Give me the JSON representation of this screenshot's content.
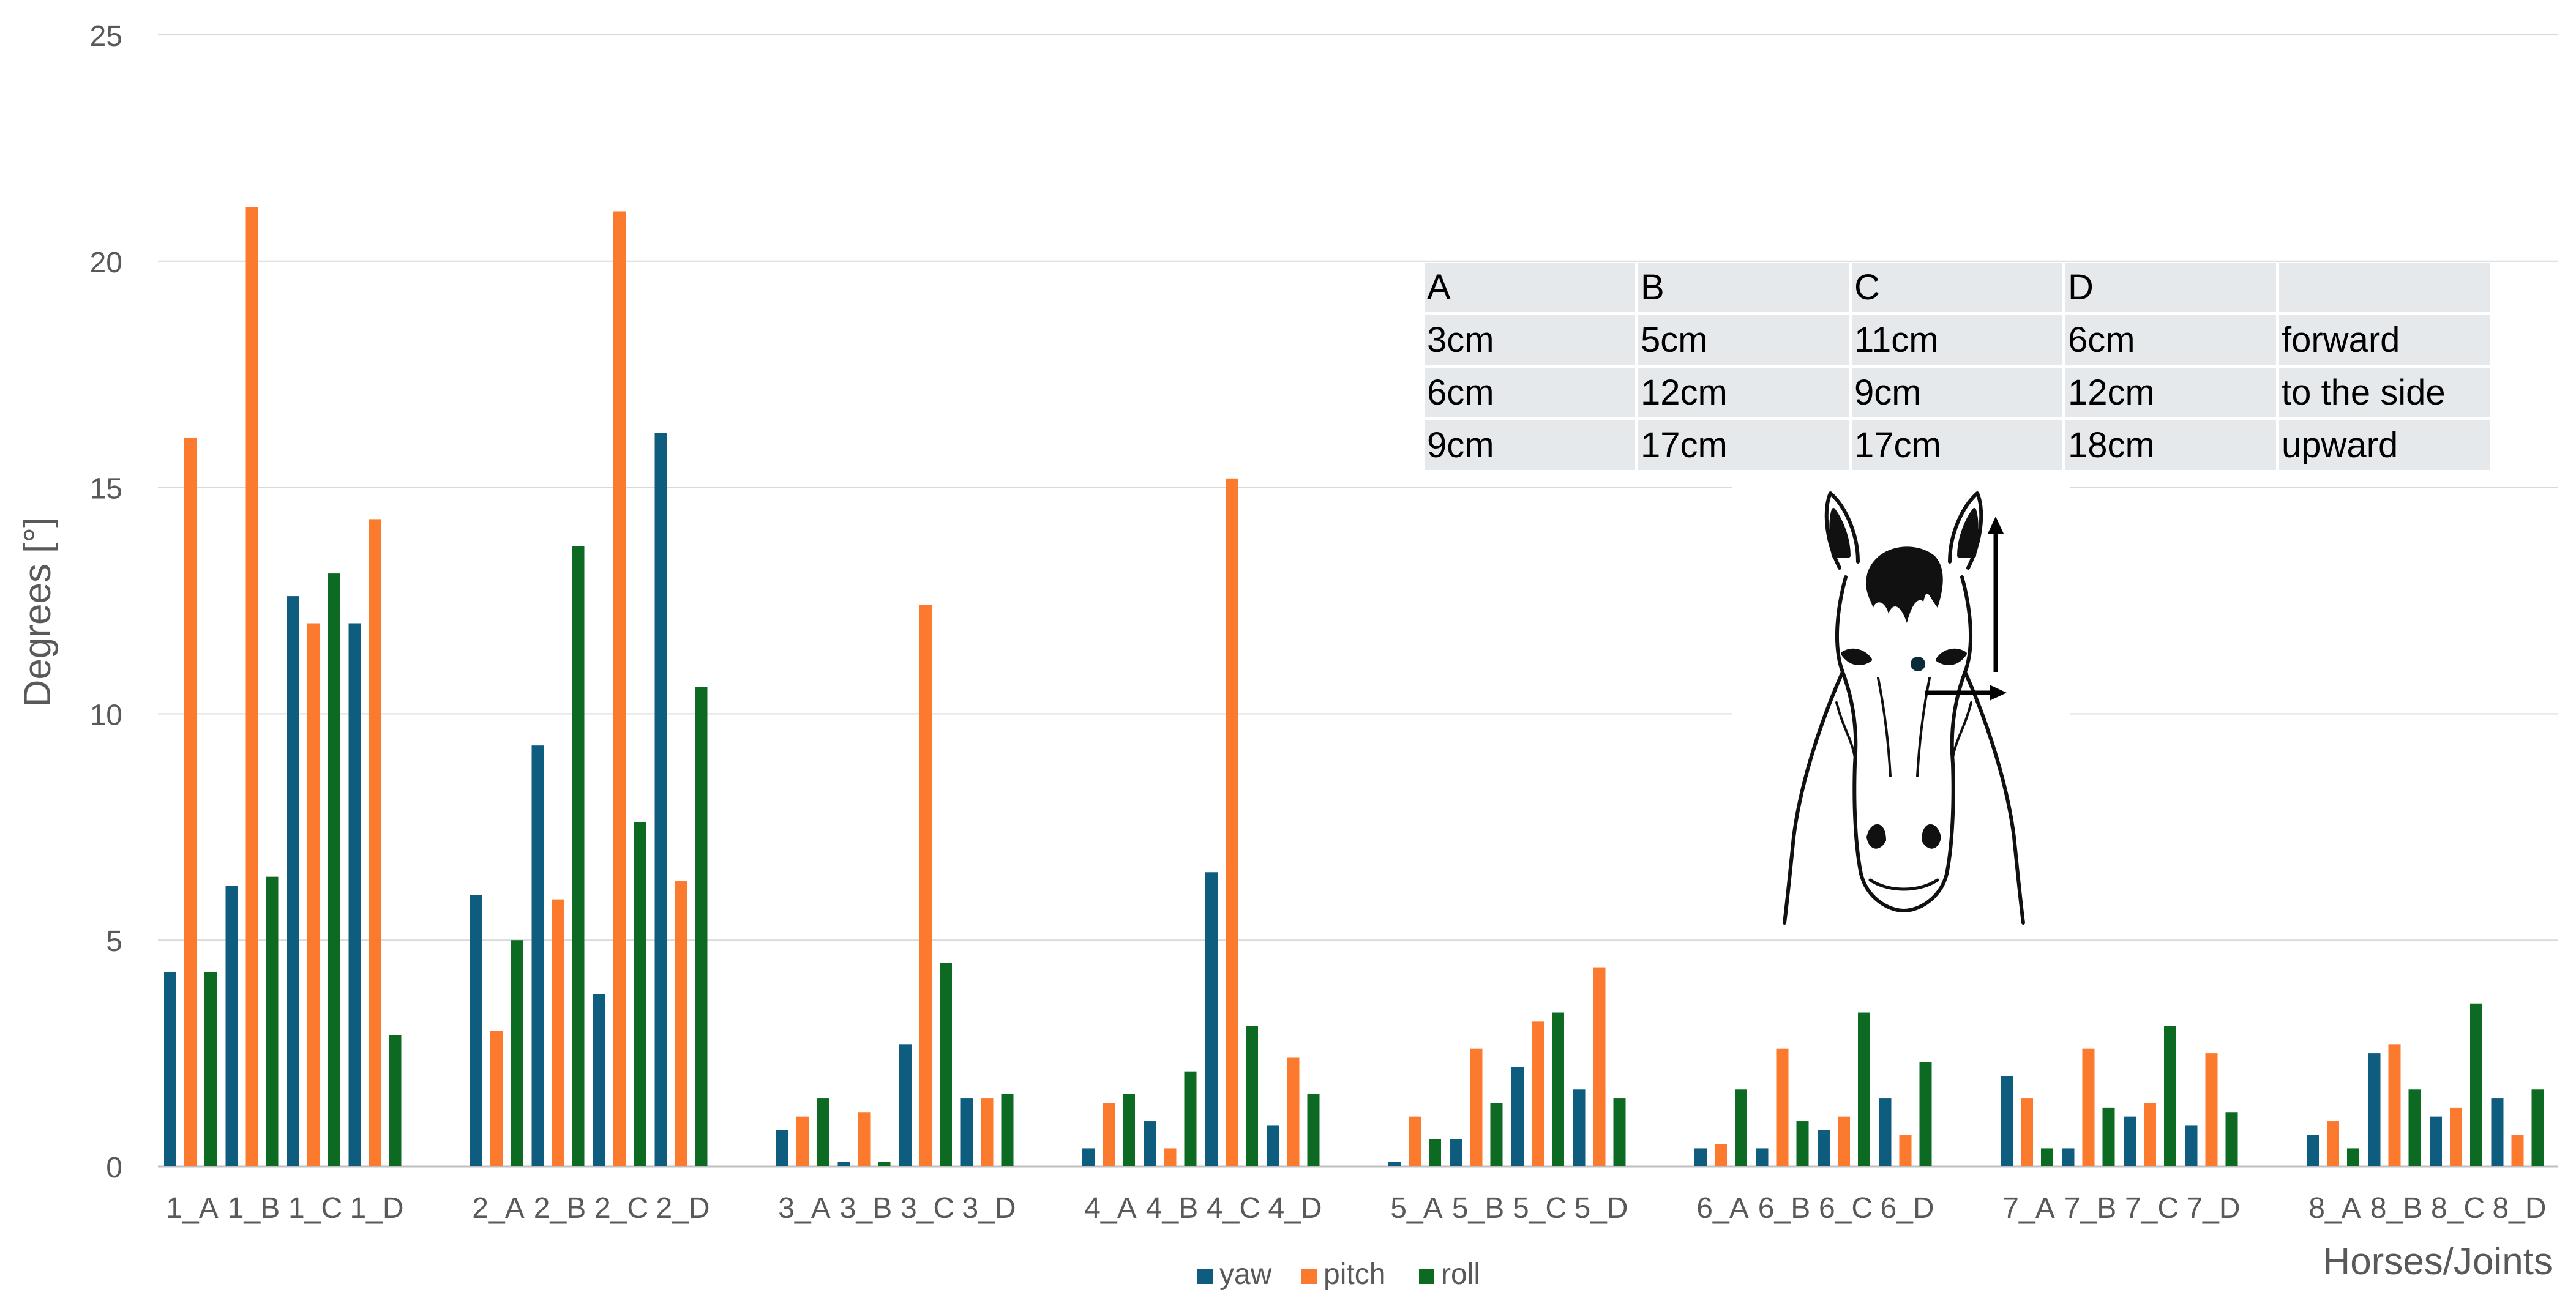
{
  "chart_data": {
    "type": "bar",
    "xlabel": "Horses/Joints",
    "ylabel": "Degrees [°]",
    "ylim": [
      0,
      25
    ],
    "yticks": [
      0,
      5,
      10,
      15,
      20,
      25
    ],
    "grid": true,
    "legend_position": "bottom",
    "categories": [
      "1_A",
      "1_B",
      "1_C",
      "1_D",
      "2_A",
      "2_B",
      "2_C",
      "2_D",
      "3_A",
      "3_B",
      "3_C",
      "3_D",
      "4_A",
      "4_B",
      "4_C",
      "4_D",
      "5_A",
      "5_B",
      "5_C",
      "5_D",
      "6_A",
      "6_B",
      "6_C",
      "6_D",
      "7_A",
      "7_B",
      "7_C",
      "7_D",
      "8_A",
      "8_B",
      "8_C",
      "8_D"
    ],
    "series": [
      {
        "name": "yaw",
        "color": "#0e5c7e",
        "values": [
          4.3,
          6.2,
          12.6,
          12.0,
          6.0,
          9.3,
          3.8,
          16.2,
          0.8,
          0.1,
          2.7,
          1.5,
          0.4,
          1.0,
          6.5,
          0.9,
          0.1,
          0.6,
          2.2,
          1.7,
          0.4,
          0.4,
          0.8,
          1.5,
          2.0,
          0.4,
          1.1,
          0.9,
          0.7,
          2.5,
          1.1,
          1.5
        ]
      },
      {
        "name": "pitch",
        "color": "#fb7a2e",
        "values": [
          16.1,
          21.2,
          12.0,
          14.3,
          3.0,
          5.9,
          21.1,
          6.3,
          1.1,
          1.2,
          12.4,
          1.5,
          1.4,
          0.4,
          15.2,
          2.4,
          1.1,
          2.6,
          3.2,
          4.4,
          0.5,
          2.6,
          1.1,
          0.7,
          1.5,
          2.6,
          1.4,
          2.5,
          1.0,
          2.7,
          1.3,
          0.7
        ]
      },
      {
        "name": "roll",
        "color": "#0d6a22",
        "values": [
          4.3,
          6.4,
          13.1,
          2.9,
          5.0,
          13.7,
          7.6,
          10.6,
          1.5,
          0.1,
          4.5,
          1.6,
          1.6,
          2.1,
          3.1,
          1.6,
          0.6,
          1.4,
          3.4,
          1.5,
          1.7,
          1.0,
          3.4,
          2.3,
          0.4,
          1.3,
          3.1,
          1.2,
          0.4,
          1.7,
          3.6,
          1.7
        ]
      }
    ]
  },
  "table": {
    "rows": [
      [
        "A",
        "B",
        "C",
        "D",
        ""
      ],
      [
        "3cm",
        "5cm",
        "11cm",
        "6cm",
        "forward"
      ],
      [
        "6cm",
        "12cm",
        "9cm",
        "12cm",
        "to the side"
      ],
      [
        "9cm",
        "17cm",
        "17cm",
        "18cm",
        "upward"
      ]
    ]
  },
  "illustration": {
    "icon": "horse-head-icon",
    "arrows": [
      "arrow-up-icon",
      "arrow-right-icon"
    ]
  }
}
